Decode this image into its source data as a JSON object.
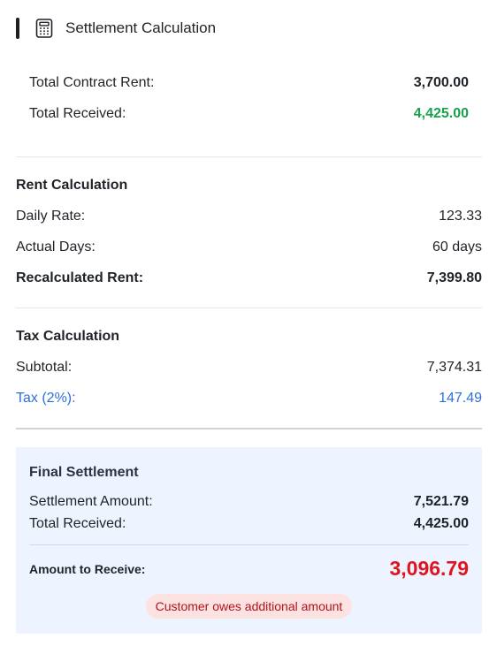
{
  "header": {
    "title": "Settlement Calculation",
    "icon": "calculator-icon"
  },
  "summary": {
    "contract_rent_label": "Total Contract Rent:",
    "contract_rent_value": "3,700.00",
    "received_label": "Total Received:",
    "received_value": "4,425.00"
  },
  "rent": {
    "title": "Rent Calculation",
    "daily_rate_label": "Daily Rate:",
    "daily_rate_value": "123.33",
    "actual_days_label": "Actual Days:",
    "actual_days_value": "60 days",
    "recalc_label": "Recalculated Rent:",
    "recalc_value": "7,399.80"
  },
  "tax": {
    "title": "Tax Calculation",
    "subtotal_label": "Subtotal:",
    "subtotal_value": "7,374.31",
    "tax_label": "Tax (2%):",
    "tax_value": "147.49"
  },
  "final": {
    "title": "Final Settlement",
    "settlement_label": "Settlement Amount:",
    "settlement_value": "7,521.79",
    "received_label": "Total Received:",
    "received_value": "4,425.00",
    "receive_label": "Amount to Receive:",
    "receive_value": "3,096.79",
    "badge": "Customer owes additional amount"
  },
  "colors": {
    "accent_bar": "#1f1f1f",
    "positive": "#16a34a",
    "tax_blue": "#2f6fd6",
    "panel_bg": "#eef4ff",
    "amount_red": "#e0141e",
    "badge_bg": "#fde2e2",
    "badge_text": "#b3121a"
  }
}
